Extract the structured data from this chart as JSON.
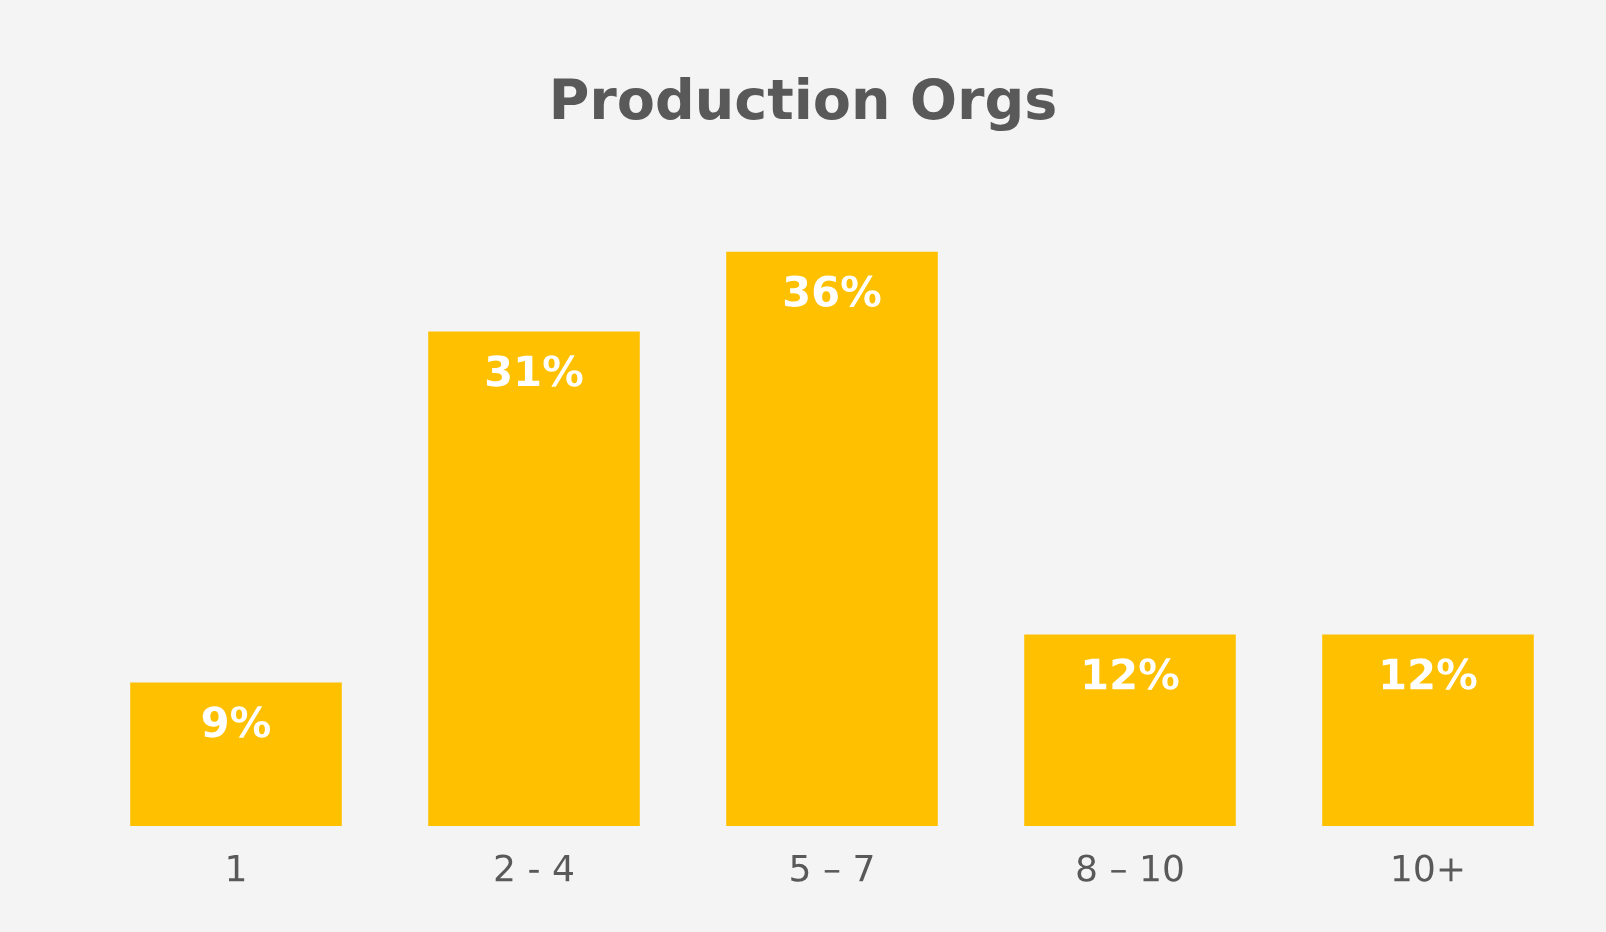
{
  "chart_data": {
    "type": "bar",
    "title": "Production Orgs",
    "categories": [
      "1",
      "2 - 4",
      "5 – 7",
      "8 – 10",
      "10+"
    ],
    "values": [
      9,
      31,
      36,
      12,
      12
    ],
    "value_labels": [
      "9%",
      "31%",
      "36%",
      "12%",
      "12%"
    ],
    "color": "#ffc000",
    "grid": false,
    "legend": false
  }
}
